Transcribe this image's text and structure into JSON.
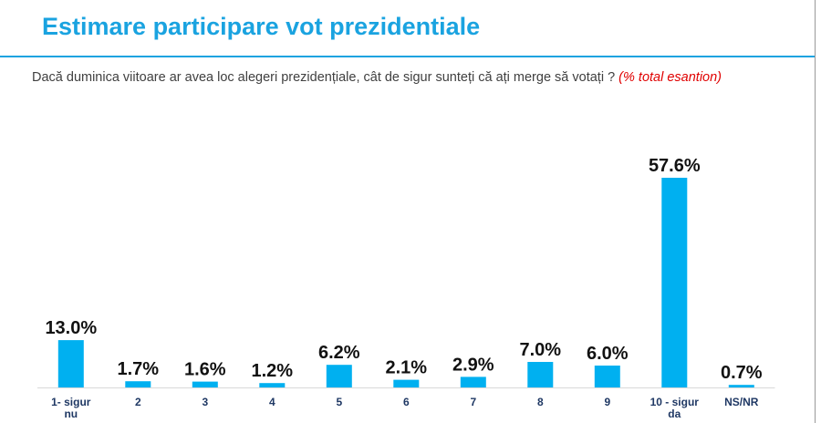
{
  "slide": {
    "title": "Estimare participare vot prezidentiale",
    "question": "Dacă duminica viitoare ar avea loc alegeri prezidențiale, cât de sigur sunteți că ați merge să votați ?",
    "note": "(% total esantion)"
  },
  "colors": {
    "accent": "#1aa3e0",
    "bar": "#00b0f0",
    "note": "#e00000",
    "category_text": "#1f3864"
  },
  "chart_data": {
    "type": "bar",
    "categories": [
      "1- sigur nu",
      "2",
      "3",
      "4",
      "5",
      "6",
      "7",
      "8",
      "9",
      "10 - sigur da",
      "NS/NR"
    ],
    "values": [
      13.0,
      1.7,
      1.6,
      1.2,
      6.2,
      2.1,
      2.9,
      7.0,
      6.0,
      57.6,
      0.7
    ],
    "value_labels": [
      "13.0%",
      "1.7%",
      "1.6%",
      "1.2%",
      "6.2%",
      "2.1%",
      "2.9%",
      "7.0%",
      "6.0%",
      "57.6%",
      "0.7%"
    ],
    "title": "",
    "xlabel": "",
    "ylabel": "",
    "grid": false,
    "legend": "none"
  }
}
